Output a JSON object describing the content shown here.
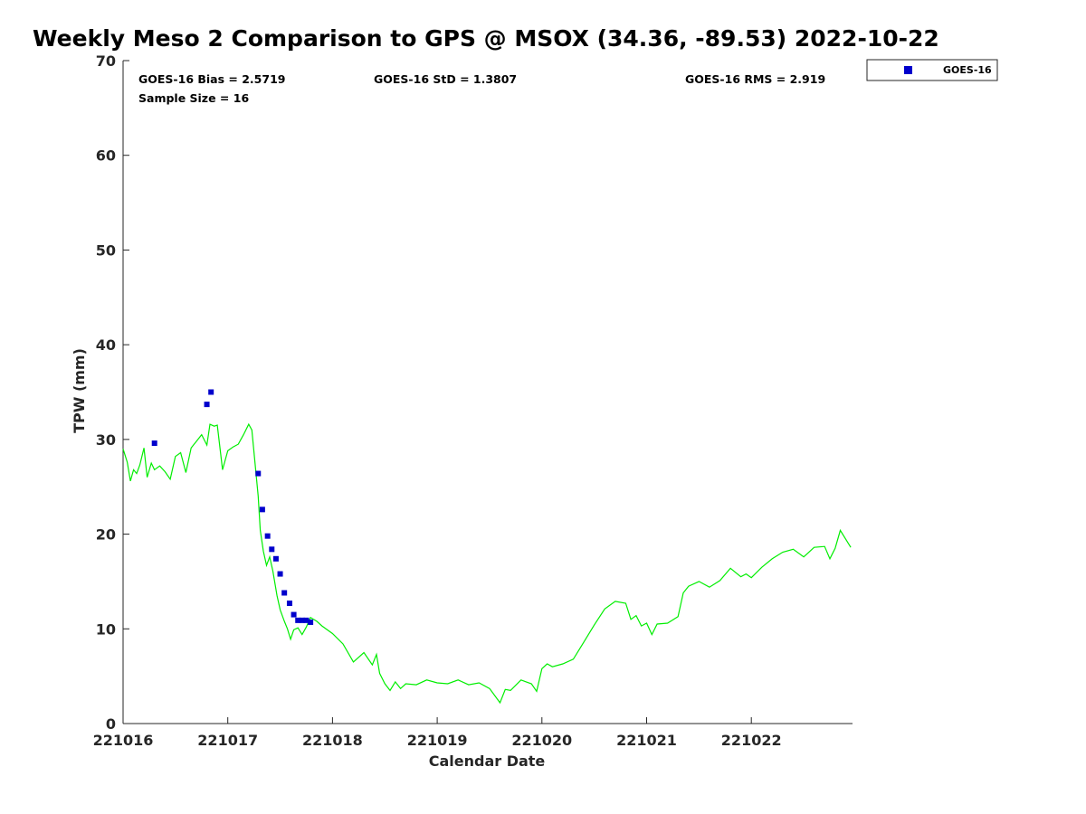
{
  "chart_data": {
    "type": "scatter",
    "title": "Weekly Meso 2 Comparison to GPS @ MSOX (34.36, -89.53) 2022-10-22",
    "xlabel": "Calendar Date",
    "ylabel": "TPW (mm)",
    "x_ticks": [
      "221016",
      "221017",
      "221018",
      "221019",
      "221020",
      "221021",
      "221022"
    ],
    "x_range_days": [
      0,
      6.95
    ],
    "ylim": [
      0,
      70
    ],
    "y_ticks": [
      0,
      10,
      20,
      30,
      40,
      50,
      60,
      70
    ],
    "grid": false,
    "legend_position": "top-right, outside plot",
    "stats": {
      "bias": "GOES-16 Bias = 2.5719",
      "std": "GOES-16 StD = 1.3807",
      "rms": "GOES-16 RMS = 2.919",
      "sample": "Sample Size = 16"
    },
    "series": [
      {
        "name": "GOES-16",
        "marker": "square",
        "color": "#0000cc",
        "points": [
          [
            0.3,
            29.6
          ],
          [
            0.8,
            33.7
          ],
          [
            0.84,
            35.0
          ],
          [
            1.29,
            26.4
          ],
          [
            1.33,
            22.6
          ],
          [
            1.38,
            19.8
          ],
          [
            1.42,
            18.4
          ],
          [
            1.46,
            17.4
          ],
          [
            1.5,
            15.8
          ],
          [
            1.54,
            13.8
          ],
          [
            1.59,
            12.7
          ],
          [
            1.63,
            11.5
          ],
          [
            1.67,
            10.9
          ],
          [
            1.71,
            10.9
          ],
          [
            1.75,
            10.9
          ],
          [
            1.79,
            10.7
          ]
        ]
      },
      {
        "line_color": "#00ee00",
        "line": [
          [
            0.0,
            29.0
          ],
          [
            0.04,
            27.6
          ],
          [
            0.07,
            25.6
          ],
          [
            0.1,
            26.8
          ],
          [
            0.13,
            26.4
          ],
          [
            0.16,
            27.3
          ],
          [
            0.2,
            29.1
          ],
          [
            0.23,
            26.0
          ],
          [
            0.27,
            27.5
          ],
          [
            0.3,
            26.8
          ],
          [
            0.35,
            27.2
          ],
          [
            0.4,
            26.6
          ],
          [
            0.45,
            25.8
          ],
          [
            0.5,
            28.2
          ],
          [
            0.55,
            28.6
          ],
          [
            0.6,
            26.5
          ],
          [
            0.65,
            29.1
          ],
          [
            0.7,
            29.8
          ],
          [
            0.75,
            30.5
          ],
          [
            0.8,
            29.4
          ],
          [
            0.83,
            31.6
          ],
          [
            0.87,
            31.4
          ],
          [
            0.9,
            31.5
          ],
          [
            0.95,
            26.8
          ],
          [
            1.0,
            28.8
          ],
          [
            1.05,
            29.2
          ],
          [
            1.1,
            29.5
          ],
          [
            1.15,
            30.5
          ],
          [
            1.2,
            31.6
          ],
          [
            1.23,
            31.0
          ],
          [
            1.26,
            27.5
          ],
          [
            1.29,
            24.0
          ],
          [
            1.31,
            20.4
          ],
          [
            1.34,
            18.2
          ],
          [
            1.37,
            16.7
          ],
          [
            1.4,
            17.6
          ],
          [
            1.43,
            16.1
          ],
          [
            1.47,
            13.5
          ],
          [
            1.5,
            12.0
          ],
          [
            1.54,
            10.8
          ],
          [
            1.57,
            10.0
          ],
          [
            1.6,
            8.9
          ],
          [
            1.63,
            9.9
          ],
          [
            1.67,
            10.1
          ],
          [
            1.71,
            9.4
          ],
          [
            1.75,
            10.2
          ],
          [
            1.79,
            11.2
          ],
          [
            1.85,
            10.8
          ],
          [
            1.9,
            10.3
          ],
          [
            2.0,
            9.5
          ],
          [
            2.1,
            8.4
          ],
          [
            2.2,
            6.5
          ],
          [
            2.3,
            7.5
          ],
          [
            2.38,
            6.2
          ],
          [
            2.42,
            7.3
          ],
          [
            2.45,
            5.3
          ],
          [
            2.5,
            4.2
          ],
          [
            2.55,
            3.5
          ],
          [
            2.6,
            4.4
          ],
          [
            2.65,
            3.7
          ],
          [
            2.7,
            4.2
          ],
          [
            2.8,
            4.1
          ],
          [
            2.9,
            4.6
          ],
          [
            3.0,
            4.3
          ],
          [
            3.1,
            4.2
          ],
          [
            3.2,
            4.6
          ],
          [
            3.3,
            4.1
          ],
          [
            3.4,
            4.3
          ],
          [
            3.5,
            3.7
          ],
          [
            3.6,
            2.2
          ],
          [
            3.65,
            3.6
          ],
          [
            3.7,
            3.5
          ],
          [
            3.8,
            4.6
          ],
          [
            3.85,
            4.4
          ],
          [
            3.9,
            4.2
          ],
          [
            3.95,
            3.4
          ],
          [
            4.0,
            5.8
          ],
          [
            4.05,
            6.3
          ],
          [
            4.1,
            6.0
          ],
          [
            4.2,
            6.3
          ],
          [
            4.3,
            6.8
          ],
          [
            4.4,
            8.6
          ],
          [
            4.5,
            10.4
          ],
          [
            4.6,
            12.1
          ],
          [
            4.7,
            12.9
          ],
          [
            4.8,
            12.7
          ],
          [
            4.85,
            11.0
          ],
          [
            4.9,
            11.4
          ],
          [
            4.95,
            10.3
          ],
          [
            5.0,
            10.6
          ],
          [
            5.05,
            9.4
          ],
          [
            5.1,
            10.5
          ],
          [
            5.2,
            10.6
          ],
          [
            5.3,
            11.3
          ],
          [
            5.35,
            13.8
          ],
          [
            5.4,
            14.5
          ],
          [
            5.5,
            15.0
          ],
          [
            5.6,
            14.4
          ],
          [
            5.7,
            15.1
          ],
          [
            5.8,
            16.4
          ],
          [
            5.9,
            15.5
          ],
          [
            5.95,
            15.8
          ],
          [
            6.0,
            15.4
          ],
          [
            6.1,
            16.5
          ],
          [
            6.2,
            17.4
          ],
          [
            6.3,
            18.1
          ],
          [
            6.4,
            18.4
          ],
          [
            6.5,
            17.6
          ],
          [
            6.6,
            18.6
          ],
          [
            6.7,
            18.7
          ],
          [
            6.75,
            17.4
          ],
          [
            6.8,
            18.5
          ],
          [
            6.85,
            20.4
          ],
          [
            6.9,
            19.5
          ],
          [
            6.95,
            18.6
          ]
        ]
      }
    ]
  }
}
